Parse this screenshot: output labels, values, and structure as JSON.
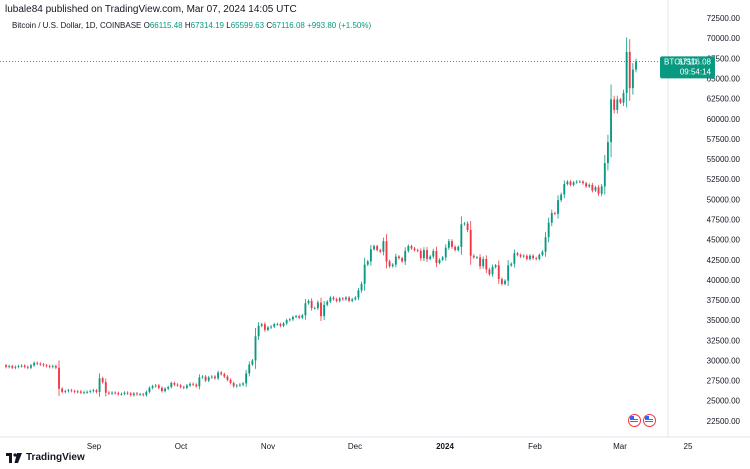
{
  "header": {
    "published": "lubale84 published on TradingView.com, Mar 07, 2024 14:05 UTC",
    "symbol": "Bitcoin / U.S. Dollar, 1D, COINBASE",
    "o_label": "O",
    "o_value": "66115.48",
    "h_label": "H",
    "h_value": "67314.19",
    "l_label": "L",
    "l_value": "65599.63",
    "c_label": "C",
    "c_value": "67116.08",
    "change": "+993.80 (+1.50%)"
  },
  "price_tag": {
    "symbol": "BTCUSD",
    "price": "67116.08",
    "countdown": "09:54:14"
  },
  "footer": {
    "brand": "TradingView"
  },
  "colors": {
    "up": "#089981",
    "down": "#f23645",
    "tag": "#089981"
  },
  "chart_data": {
    "type": "candlestick",
    "y_ticks": [
      "72500.00",
      "70000.00",
      "67500.00",
      "65000.00",
      "62500.00",
      "60000.00",
      "57500.00",
      "55000.00",
      "52500.00",
      "50000.00",
      "47500.00",
      "45000.00",
      "42500.00",
      "40000.00",
      "37500.00",
      "35000.00",
      "32500.00",
      "30000.00",
      "27500.00",
      "25000.00",
      "22500.00"
    ],
    "x_ticks": [
      "Sep",
      "Oct",
      "Nov",
      "Dec",
      "2024",
      "Feb",
      "Mar",
      "25"
    ],
    "ylim": [
      20500,
      73500
    ],
    "last_price": 67116.08,
    "closes": [
      29200,
      29300,
      29100,
      29200,
      29300,
      29350,
      29200,
      29100,
      29400,
      29700,
      29600,
      29500,
      29400,
      29300,
      29200,
      29300,
      29100,
      26500,
      26100,
      26200,
      26300,
      26200,
      26100,
      26150,
      26000,
      26050,
      26100,
      26200,
      26300,
      26100,
      27800,
      27300,
      26000,
      25900,
      26000,
      25950,
      25800,
      25850,
      26000,
      25900,
      25700,
      25900,
      25800,
      25800,
      25700,
      26100,
      26600,
      26800,
      26900,
      26600,
      26200,
      26500,
      26700,
      27200,
      27000,
      26900,
      26700,
      26600,
      26900,
      27100,
      27000,
      26800,
      27900,
      28000,
      27500,
      27900,
      28000,
      27800,
      28500,
      28300,
      28000,
      27600,
      27200,
      26800,
      26900,
      27000,
      27150,
      28400,
      29500,
      30000,
      33000,
      34300,
      34500,
      33800,
      34100,
      34200,
      34500,
      34500,
      34300,
      34600,
      35000,
      35100,
      35400,
      35500,
      35300,
      35600,
      37100,
      37400,
      36500,
      36500,
      37200,
      35500,
      36900,
      37300,
      37800,
      37600,
      37400,
      37700,
      37600,
      37800,
      37400,
      37600,
      37800,
      38700,
      39500,
      41900,
      42300,
      43800,
      44200,
      43700,
      43500,
      44800,
      42300,
      41700,
      41900,
      42900,
      42700,
      42300,
      43600,
      44200,
      43900,
      43700,
      43600,
      42700,
      43700,
      42600,
      42900,
      43600,
      42100,
      42500,
      42800,
      44000,
      44800,
      44100,
      43700,
      44100,
      46900,
      47000,
      46200,
      43000,
      42800,
      42800,
      41700,
      42600,
      41300,
      40700,
      41600,
      41800,
      40100,
      39500,
      39900,
      41800,
      42000,
      43300,
      43100,
      42900,
      43000,
      42600,
      43000,
      42700,
      42600,
      43100,
      43500,
      45300,
      47100,
      48300,
      48200,
      49900,
      50600,
      51900,
      52200,
      51800,
      52100,
      52200,
      52200,
      52000,
      51600,
      51800,
      51100,
      51500,
      50700,
      51600,
      54500,
      57100,
      62400,
      61100,
      62400,
      62000,
      63200,
      68300,
      63800,
      66100,
      67116
    ],
    "opens": [
      29400,
      29200,
      29300,
      29100,
      29200,
      29300,
      29350,
      29200,
      29100,
      29400,
      29700,
      29600,
      29500,
      29400,
      29300,
      29200,
      29300,
      29100,
      26500,
      26100,
      26200,
      26300,
      26200,
      26100,
      26150,
      26000,
      26050,
      26100,
      26200,
      26300,
      26100,
      27800,
      27300,
      26000,
      25900,
      26000,
      25950,
      25800,
      25850,
      26000,
      25900,
      25700,
      25900,
      25800,
      25800,
      25700,
      26100,
      26600,
      26800,
      26900,
      26600,
      26200,
      26500,
      26700,
      27200,
      27000,
      26900,
      26700,
      26600,
      26900,
      27100,
      27000,
      26800,
      27900,
      28000,
      27500,
      27900,
      28000,
      27800,
      28500,
      28300,
      28000,
      27600,
      27200,
      26800,
      26900,
      27000,
      27150,
      28400,
      29500,
      30000,
      33000,
      34300,
      34500,
      33800,
      34100,
      34200,
      34500,
      34500,
      34300,
      34600,
      35000,
      35100,
      35400,
      35500,
      35300,
      35600,
      37100,
      37400,
      36500,
      36500,
      37200,
      35500,
      36900,
      37300,
      37800,
      37600,
      37400,
      37700,
      37600,
      37800,
      37400,
      37600,
      37800,
      38700,
      39500,
      41900,
      42300,
      43800,
      44200,
      43700,
      43500,
      44800,
      42300,
      41700,
      41900,
      42900,
      42700,
      42300,
      43600,
      44200,
      43900,
      43700,
      43600,
      42700,
      43700,
      42600,
      42900,
      43600,
      42100,
      42500,
      42800,
      44000,
      44800,
      44100,
      43700,
      44100,
      46900,
      47000,
      46200,
      43000,
      42800,
      42800,
      41700,
      42600,
      41300,
      40700,
      41600,
      41800,
      40100,
      39500,
      39900,
      41800,
      42000,
      43300,
      43100,
      42900,
      43000,
      42600,
      43000,
      42700,
      42600,
      43100,
      43500,
      45300,
      47100,
      48300,
      48200,
      49900,
      50600,
      51900,
      52200,
      51800,
      52100,
      52200,
      52200,
      52000,
      51600,
      51800,
      51100,
      51500,
      50700,
      51600,
      54500,
      57100,
      62400,
      61100,
      62400,
      62000,
      63200,
      68300,
      63800,
      66115
    ]
  }
}
